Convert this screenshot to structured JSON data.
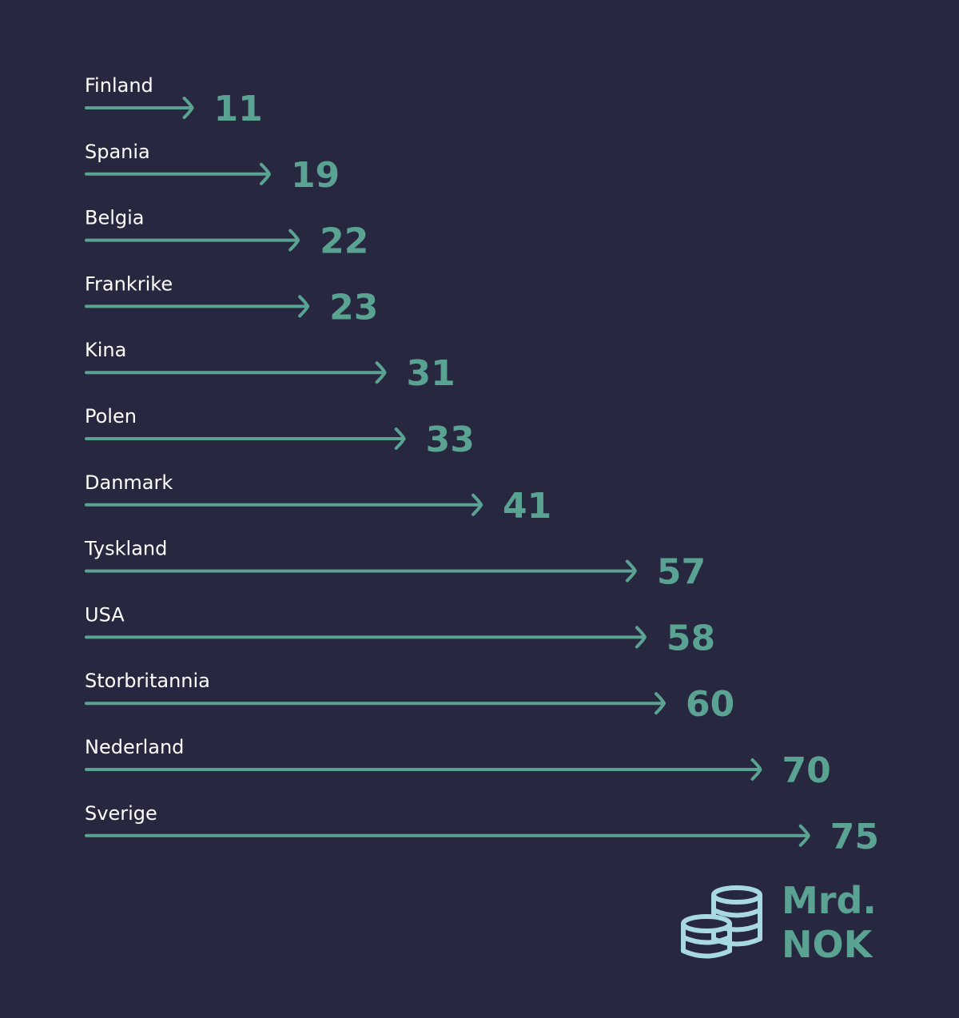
{
  "chart_data": {
    "type": "bar",
    "orientation": "horizontal",
    "categories": [
      "Finland",
      "Spania",
      "Belgia",
      "Frankrike",
      "Kina",
      "Polen",
      "Danmark",
      "Tyskland",
      "USA",
      "Storbritannia",
      "Nederland",
      "Sverige"
    ],
    "values": [
      11,
      19,
      22,
      23,
      31,
      33,
      41,
      57,
      58,
      60,
      70,
      75
    ],
    "value_labels": [
      "11",
      "19",
      "22",
      "23",
      "31",
      "33",
      "41",
      "57",
      "58",
      "60",
      "70",
      "75"
    ],
    "unit": {
      "line1": "Mrd.",
      "line2": "NOK"
    },
    "unit_icon": "coins-icon",
    "grid": false,
    "legend": "none",
    "colors": {
      "background": "#272740",
      "arrow": "#5aa392",
      "value_text": "#5aa392",
      "category_text": "#ffffff",
      "icon": "#a8d8e0"
    }
  }
}
